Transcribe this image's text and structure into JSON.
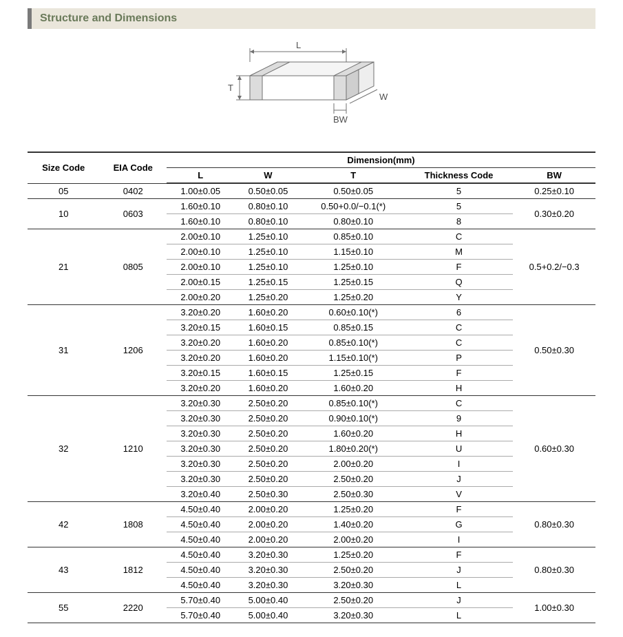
{
  "title": "Structure and Dimensions",
  "diagram": {
    "labels": {
      "L": "L",
      "W": "W",
      "T": "T",
      "BW": "BW"
    },
    "stroke": "#707070",
    "fill": "#f5f5f5",
    "text_color": "#505050",
    "fontsize": 13
  },
  "table": {
    "columns": {
      "size_code": "Size Code",
      "eia_code": "EIA Code",
      "dim_header": "Dimension(mm)",
      "L": "L",
      "W": "W",
      "T": "T",
      "thk": "Thickness  Code",
      "BW": "BW"
    },
    "groups": [
      {
        "size_code": "05",
        "eia_code": "0402",
        "bw": "0.25±0.10",
        "rows": [
          {
            "L": "1.00±0.05",
            "W": "0.50±0.05",
            "T": "0.50±0.05",
            "thk": "5"
          }
        ]
      },
      {
        "size_code": "10",
        "eia_code": "0603",
        "bw": "0.30±0.20",
        "rows": [
          {
            "L": "1.60±0.10",
            "W": "0.80±0.10",
            "T": "0.50+0.0/−0.1(*)",
            "thk": "5"
          },
          {
            "L": "1.60±0.10",
            "W": "0.80±0.10",
            "T": "0.80±0.10",
            "thk": "8"
          }
        ]
      },
      {
        "size_code": "21",
        "eia_code": "0805",
        "bw": "0.5+0.2/−0.3",
        "rows": [
          {
            "L": "2.00±0.10",
            "W": "1.25±0.10",
            "T": "0.85±0.10",
            "thk": "C"
          },
          {
            "L": "2.00±0.10",
            "W": "1.25±0.10",
            "T": "1.15±0.10",
            "thk": "M"
          },
          {
            "L": "2.00±0.10",
            "W": "1.25±0.10",
            "T": "1.25±0.10",
            "thk": "F"
          },
          {
            "L": "2.00±0.15",
            "W": "1.25±0.15",
            "T": "1.25±0.15",
            "thk": "Q"
          },
          {
            "L": "2.00±0.20",
            "W": "1.25±0.20",
            "T": "1.25±0.20",
            "thk": "Y"
          }
        ]
      },
      {
        "size_code": "31",
        "eia_code": "1206",
        "bw": "0.50±0.30",
        "rows": [
          {
            "L": "3.20±0.20",
            "W": "1.60±0.20",
            "T": "0.60±0.10(*)",
            "thk": "6"
          },
          {
            "L": "3.20±0.15",
            "W": "1.60±0.15",
            "T": "0.85±0.15",
            "thk": "C"
          },
          {
            "L": "3.20±0.20",
            "W": "1.60±0.20",
            "T": "0.85±0.10(*)",
            "thk": "C"
          },
          {
            "L": "3.20±0.20",
            "W": "1.60±0.20",
            "T": "1.15±0.10(*)",
            "thk": "P"
          },
          {
            "L": "3.20±0.15",
            "W": "1.60±0.15",
            "T": "1.25±0.15",
            "thk": "F"
          },
          {
            "L": "3.20±0.20",
            "W": "1.60±0.20",
            "T": "1.60±0.20",
            "thk": "H"
          }
        ]
      },
      {
        "size_code": "32",
        "eia_code": "1210",
        "bw": "0.60±0.30",
        "rows": [
          {
            "L": "3.20±0.30",
            "W": "2.50±0.20",
            "T": "0.85±0.10(*)",
            "thk": "C"
          },
          {
            "L": "3.20±0.30",
            "W": "2.50±0.20",
            "T": "0.90±0.10(*)",
            "thk": "9"
          },
          {
            "L": "3.20±0.30",
            "W": "2.50±0.20",
            "T": "1.60±0.20",
            "thk": "H"
          },
          {
            "L": "3.20±0.30",
            "W": "2.50±0.20",
            "T": "1.80±0.20(*)",
            "thk": "U"
          },
          {
            "L": "3.20±0.30",
            "W": "2.50±0.20",
            "T": "2.00±0.20",
            "thk": "I"
          },
          {
            "L": "3.20±0.30",
            "W": "2.50±0.20",
            "T": "2.50±0.20",
            "thk": "J"
          },
          {
            "L": "3.20±0.40",
            "W": "2.50±0.30",
            "T": "2.50±0.30",
            "thk": "V"
          }
        ]
      },
      {
        "size_code": "42",
        "eia_code": "1808",
        "bw": "0.80±0.30",
        "rows": [
          {
            "L": "4.50±0.40",
            "W": "2.00±0.20",
            "T": "1.25±0.20",
            "thk": "F"
          },
          {
            "L": "4.50±0.40",
            "W": "2.00±0.20",
            "T": "1.40±0.20",
            "thk": "G"
          },
          {
            "L": "4.50±0.40",
            "W": "2.00±0.20",
            "T": "2.00±0.20",
            "thk": "I"
          }
        ]
      },
      {
        "size_code": "43",
        "eia_code": "1812",
        "bw": "0.80±0.30",
        "rows": [
          {
            "L": "4.50±0.40",
            "W": "3.20±0.30",
            "T": "1.25±0.20",
            "thk": "F"
          },
          {
            "L": "4.50±0.40",
            "W": "3.20±0.30",
            "T": "2.50±0.20",
            "thk": "J"
          },
          {
            "L": "4.50±0.40",
            "W": "3.20±0.30",
            "T": "3.20±0.30",
            "thk": "L"
          }
        ]
      },
      {
        "size_code": "55",
        "eia_code": "2220",
        "bw": "1.00±0.30",
        "rows": [
          {
            "L": "5.70±0.40",
            "W": "5.00±0.40",
            "T": "2.50±0.20",
            "thk": "J"
          },
          {
            "L": "5.70±0.40",
            "W": "5.00±0.40",
            "T": "3.20±0.30",
            "thk": "L"
          }
        ]
      }
    ]
  }
}
